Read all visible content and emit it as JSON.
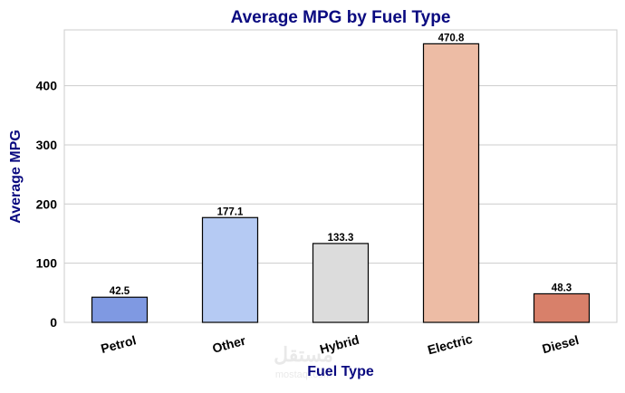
{
  "chart_data": {
    "type": "bar",
    "title": "Average MPG by Fuel Type",
    "xlabel": "Fuel Type",
    "ylabel": "Average MPG",
    "categories": [
      "Petrol",
      "Other",
      "Hybrid",
      "Electric",
      "Diesel"
    ],
    "values": [
      42.5,
      177.1,
      133.3,
      470.8,
      48.3
    ],
    "data_labels": [
      "42.5",
      "177.1",
      "133.3",
      "470.8",
      "48.3"
    ],
    "colors": [
      "#7f99e2",
      "#b5caf3",
      "#dcdcdc",
      "#edbca5",
      "#d8806a"
    ],
    "ylim": [
      0,
      494.3
    ],
    "yticks": [
      0,
      100,
      200,
      300,
      400
    ],
    "grid": "horizontal",
    "legend": "none",
    "title_color": "#0a0a80",
    "watermark": "مستقل mostaql.com"
  }
}
